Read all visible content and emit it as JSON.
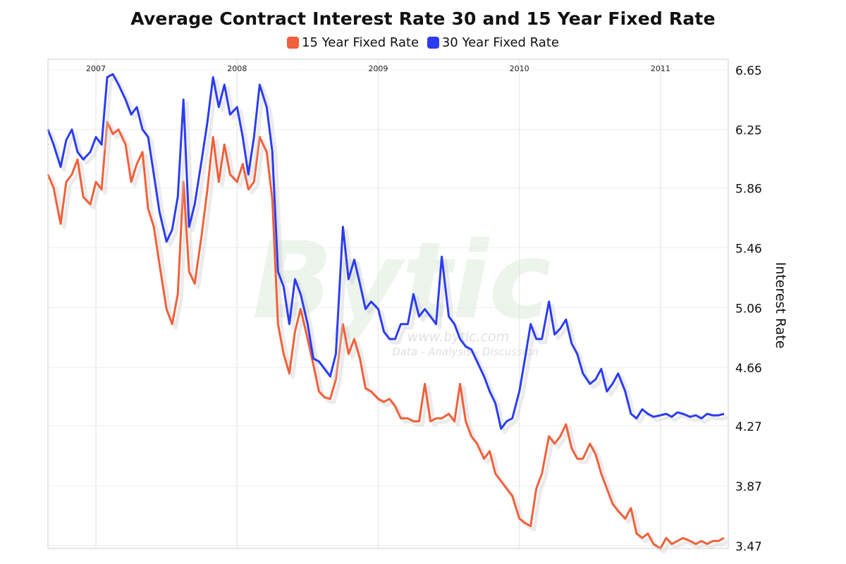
{
  "chart_data": {
    "type": "line",
    "title": "Average Contract Interest Rate 30 and 15 Year Fixed Rate",
    "ylabel": "Interest Rate",
    "ylim": [
      3.45,
      6.72
    ],
    "y_ticks": [
      "6.65",
      "6.25",
      "5.86",
      "5.46",
      "5.06",
      "4.66",
      "4.27",
      "3.87",
      "3.47"
    ],
    "y_tick_values": [
      6.65,
      6.25,
      5.86,
      5.46,
      5.06,
      4.66,
      4.27,
      3.87,
      3.47
    ],
    "x_ticks": [
      "2007",
      "2008",
      "2009",
      "2010",
      "2011"
    ],
    "x_tick_values": [
      2007.0,
      2008.0,
      2009.0,
      2010.0,
      2011.0
    ],
    "xlim": [
      2006.83,
      2011.65
    ],
    "grid": true,
    "legend_position": "top-center",
    "watermark": "Bytic",
    "watermark_sub": "www.bytic.com",
    "watermark_tag": "Data - Analysis - Discussion",
    "series": [
      {
        "name": "15 Year Fixed Rate",
        "color": "#f0603a",
        "x": [
          2006.83,
          2006.87,
          2006.92,
          2006.96,
          2007.0,
          2007.04,
          2007.08,
          2007.13,
          2007.17,
          2007.21,
          2007.25,
          2007.29,
          2007.33,
          2007.38,
          2007.42,
          2007.46,
          2007.5,
          2007.54,
          2007.58,
          2007.62,
          2007.67,
          2007.71,
          2007.75,
          2007.79,
          2007.83,
          2007.87,
          2007.92,
          2007.96,
          2008.0,
          2008.04,
          2008.08,
          2008.12,
          2008.17,
          2008.21,
          2008.25,
          2008.29,
          2008.33,
          2008.38,
          2008.42,
          2008.46,
          2008.5,
          2008.54,
          2008.58,
          2008.62,
          2008.67,
          2008.71,
          2008.75,
          2008.79,
          2008.83,
          2008.87,
          2008.92,
          2008.96,
          2009.0,
          2009.04,
          2009.08,
          2009.12,
          2009.17,
          2009.21,
          2009.25,
          2009.29,
          2009.33,
          2009.38,
          2009.42,
          2009.46,
          2009.5,
          2009.54,
          2009.58,
          2009.62,
          2009.67,
          2009.71,
          2009.75,
          2009.79,
          2009.83,
          2009.87,
          2009.92,
          2009.96,
          2010.0,
          2010.04,
          2010.08,
          2010.12,
          2010.17,
          2010.21,
          2010.25,
          2010.29,
          2010.33,
          2010.38,
          2010.42,
          2010.46,
          2010.5,
          2010.54,
          2010.58,
          2010.62,
          2010.67,
          2010.71,
          2010.75,
          2010.79,
          2010.83,
          2010.87,
          2010.92,
          2010.96,
          2011.0,
          2011.04,
          2011.08,
          2011.12,
          2011.17,
          2011.21,
          2011.25,
          2011.29,
          2011.33,
          2011.38,
          2011.42,
          2011.46,
          2011.5,
          2011.54,
          2011.58,
          2011.62
        ],
        "values": [
          5.95,
          5.86,
          5.62,
          5.9,
          5.95,
          6.05,
          5.8,
          5.75,
          5.9,
          5.85,
          6.3,
          6.22,
          6.25,
          6.15,
          5.9,
          6.02,
          6.1,
          5.72,
          5.6,
          5.35,
          5.05,
          4.95,
          5.15,
          5.9,
          5.3,
          5.22,
          5.55,
          5.85,
          6.2,
          5.9,
          6.15,
          5.95,
          5.9,
          6.02,
          5.85,
          5.9,
          6.2,
          6.1,
          5.78,
          4.95,
          4.75,
          4.62,
          4.9,
          5.05,
          4.85,
          4.68,
          4.5,
          4.46,
          4.45,
          4.58,
          4.95,
          4.75,
          4.85,
          4.72,
          4.52,
          4.5,
          4.45,
          4.43,
          4.45,
          4.4,
          4.32,
          4.32,
          4.3,
          4.3,
          4.55,
          4.3,
          4.32,
          4.32,
          4.35,
          4.3,
          4.55,
          4.3,
          4.2,
          4.15,
          4.05,
          4.1,
          3.95,
          3.9,
          3.85,
          3.8,
          3.65,
          3.62,
          3.6,
          3.85,
          3.95,
          4.2,
          4.15,
          4.2,
          4.28,
          4.12,
          4.05,
          4.05,
          4.15,
          4.08,
          3.95,
          3.85,
          3.75,
          3.7,
          3.65,
          3.72,
          3.55,
          3.52,
          3.55,
          3.48,
          3.45,
          3.52,
          3.48,
          3.5,
          3.52,
          3.5,
          3.48,
          3.5,
          3.48,
          3.5,
          3.5,
          3.52
        ]
      },
      {
        "name": "30 Year Fixed Rate",
        "color": "#2b3cf0",
        "x": [
          2006.83,
          2006.87,
          2006.92,
          2006.96,
          2007.0,
          2007.04,
          2007.08,
          2007.13,
          2007.17,
          2007.21,
          2007.25,
          2007.29,
          2007.33,
          2007.38,
          2007.42,
          2007.46,
          2007.5,
          2007.54,
          2007.58,
          2007.62,
          2007.67,
          2007.71,
          2007.75,
          2007.79,
          2007.83,
          2007.87,
          2007.92,
          2007.96,
          2008.0,
          2008.04,
          2008.08,
          2008.12,
          2008.17,
          2008.21,
          2008.25,
          2008.29,
          2008.33,
          2008.38,
          2008.42,
          2008.46,
          2008.5,
          2008.54,
          2008.58,
          2008.62,
          2008.67,
          2008.71,
          2008.75,
          2008.79,
          2008.83,
          2008.87,
          2008.92,
          2008.96,
          2009.0,
          2009.04,
          2009.08,
          2009.12,
          2009.17,
          2009.21,
          2009.25,
          2009.29,
          2009.33,
          2009.38,
          2009.42,
          2009.46,
          2009.5,
          2009.54,
          2009.58,
          2009.62,
          2009.67,
          2009.71,
          2009.75,
          2009.79,
          2009.83,
          2009.87,
          2009.92,
          2009.96,
          2010.0,
          2010.04,
          2010.08,
          2010.12,
          2010.17,
          2010.21,
          2010.25,
          2010.29,
          2010.33,
          2010.38,
          2010.42,
          2010.46,
          2010.5,
          2010.54,
          2010.58,
          2010.62,
          2010.67,
          2010.71,
          2010.75,
          2010.79,
          2010.83,
          2010.87,
          2010.92,
          2010.96,
          2011.0,
          2011.04,
          2011.08,
          2011.12,
          2011.17,
          2011.21,
          2011.25,
          2011.29,
          2011.33,
          2011.38,
          2011.42,
          2011.46,
          2011.5,
          2011.54,
          2011.58,
          2011.62
        ],
        "values": [
          6.25,
          6.15,
          6.0,
          6.18,
          6.25,
          6.1,
          6.05,
          6.1,
          6.2,
          6.15,
          6.6,
          6.62,
          6.55,
          6.45,
          6.35,
          6.4,
          6.25,
          6.2,
          5.95,
          5.7,
          5.5,
          5.58,
          5.8,
          6.45,
          5.6,
          5.75,
          6.05,
          6.3,
          6.6,
          6.4,
          6.55,
          6.35,
          6.4,
          6.2,
          5.95,
          6.2,
          6.55,
          6.4,
          6.1,
          5.3,
          5.2,
          4.95,
          5.25,
          5.15,
          4.95,
          4.72,
          4.7,
          4.65,
          4.6,
          4.75,
          5.6,
          5.25,
          5.38,
          5.22,
          5.05,
          5.1,
          5.05,
          4.9,
          4.85,
          4.85,
          4.95,
          4.95,
          5.15,
          5.0,
          5.05,
          5.0,
          4.95,
          5.4,
          5.0,
          4.95,
          4.85,
          4.8,
          4.78,
          4.7,
          4.6,
          4.5,
          4.42,
          4.25,
          4.3,
          4.32,
          4.5,
          4.72,
          4.95,
          4.85,
          4.85,
          5.1,
          4.88,
          4.92,
          4.98,
          4.82,
          4.75,
          4.62,
          4.55,
          4.58,
          4.65,
          4.5,
          4.55,
          4.62,
          4.5,
          4.35,
          4.32,
          4.38,
          4.35,
          4.33,
          4.34,
          4.35,
          4.33,
          4.36,
          4.35,
          4.33,
          4.34,
          4.32,
          4.35,
          4.34,
          4.34,
          4.35
        ]
      }
    ]
  }
}
